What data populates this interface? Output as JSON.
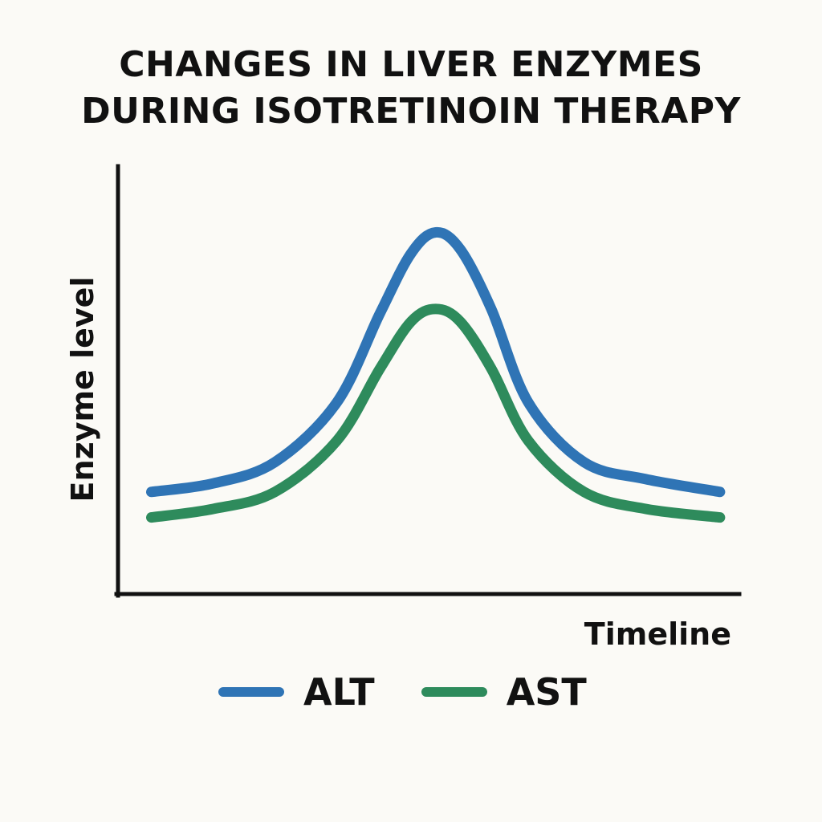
{
  "chart_data": {
    "type": "line",
    "title_lines": [
      "CHANGES IN LIVER ENZYMES",
      "DURING ISOTRETINOIN THERAPY"
    ],
    "xlabel": "Timeline",
    "ylabel": "Enzyme level",
    "xlim": [
      0,
      100
    ],
    "ylim": [
      0,
      100
    ],
    "grid": false,
    "x_ticks_shown": false,
    "y_ticks_shown": false,
    "legend_position": "bottom-center",
    "series": [
      {
        "name": "ALT",
        "color": "#2f74b5",
        "x": [
          5,
          15,
          25,
          35,
          42,
          47,
          51,
          55,
          60,
          66,
          75,
          85,
          97
        ],
        "y": [
          24,
          26,
          31,
          45,
          66,
          80,
          85,
          81,
          67,
          45,
          31,
          27,
          24
        ]
      },
      {
        "name": "AST",
        "color": "#2e8b5c",
        "x": [
          5,
          15,
          25,
          35,
          42,
          47,
          51,
          55,
          60,
          66,
          75,
          85,
          97
        ],
        "y": [
          18,
          20,
          24,
          36,
          53,
          64,
          67,
          64,
          53,
          36,
          24,
          20,
          18
        ]
      }
    ],
    "axis_color": "#111111"
  }
}
